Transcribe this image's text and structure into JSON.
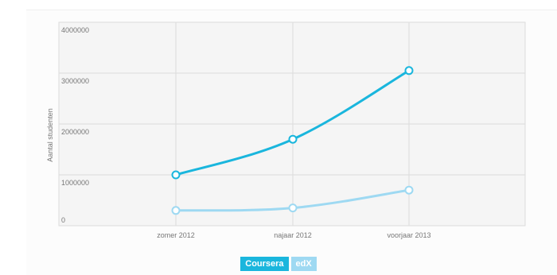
{
  "colors": {
    "coursera": "#1ab6dd",
    "edx": "#9ed9f2",
    "grid": "#dcdcdc",
    "plot_bg": "#f5f5f5"
  },
  "chart_data": {
    "type": "line",
    "ylabel": "Aantal studenten",
    "x_label_text": "",
    "y_ticks": [
      "4000000",
      "3000000",
      "2000000",
      "1000000",
      "0"
    ],
    "ylim": [
      0,
      4000000
    ],
    "categories": [
      "zomer 2012",
      "najaar 2012",
      "voorjaar 2013"
    ],
    "grid": true,
    "legend_position": "bottom-center",
    "series": [
      {
        "name": "Coursera",
        "values": [
          1000000,
          1700000,
          3050000
        ]
      },
      {
        "name": "edX",
        "values": [
          300000,
          350000,
          700000
        ]
      }
    ]
  }
}
